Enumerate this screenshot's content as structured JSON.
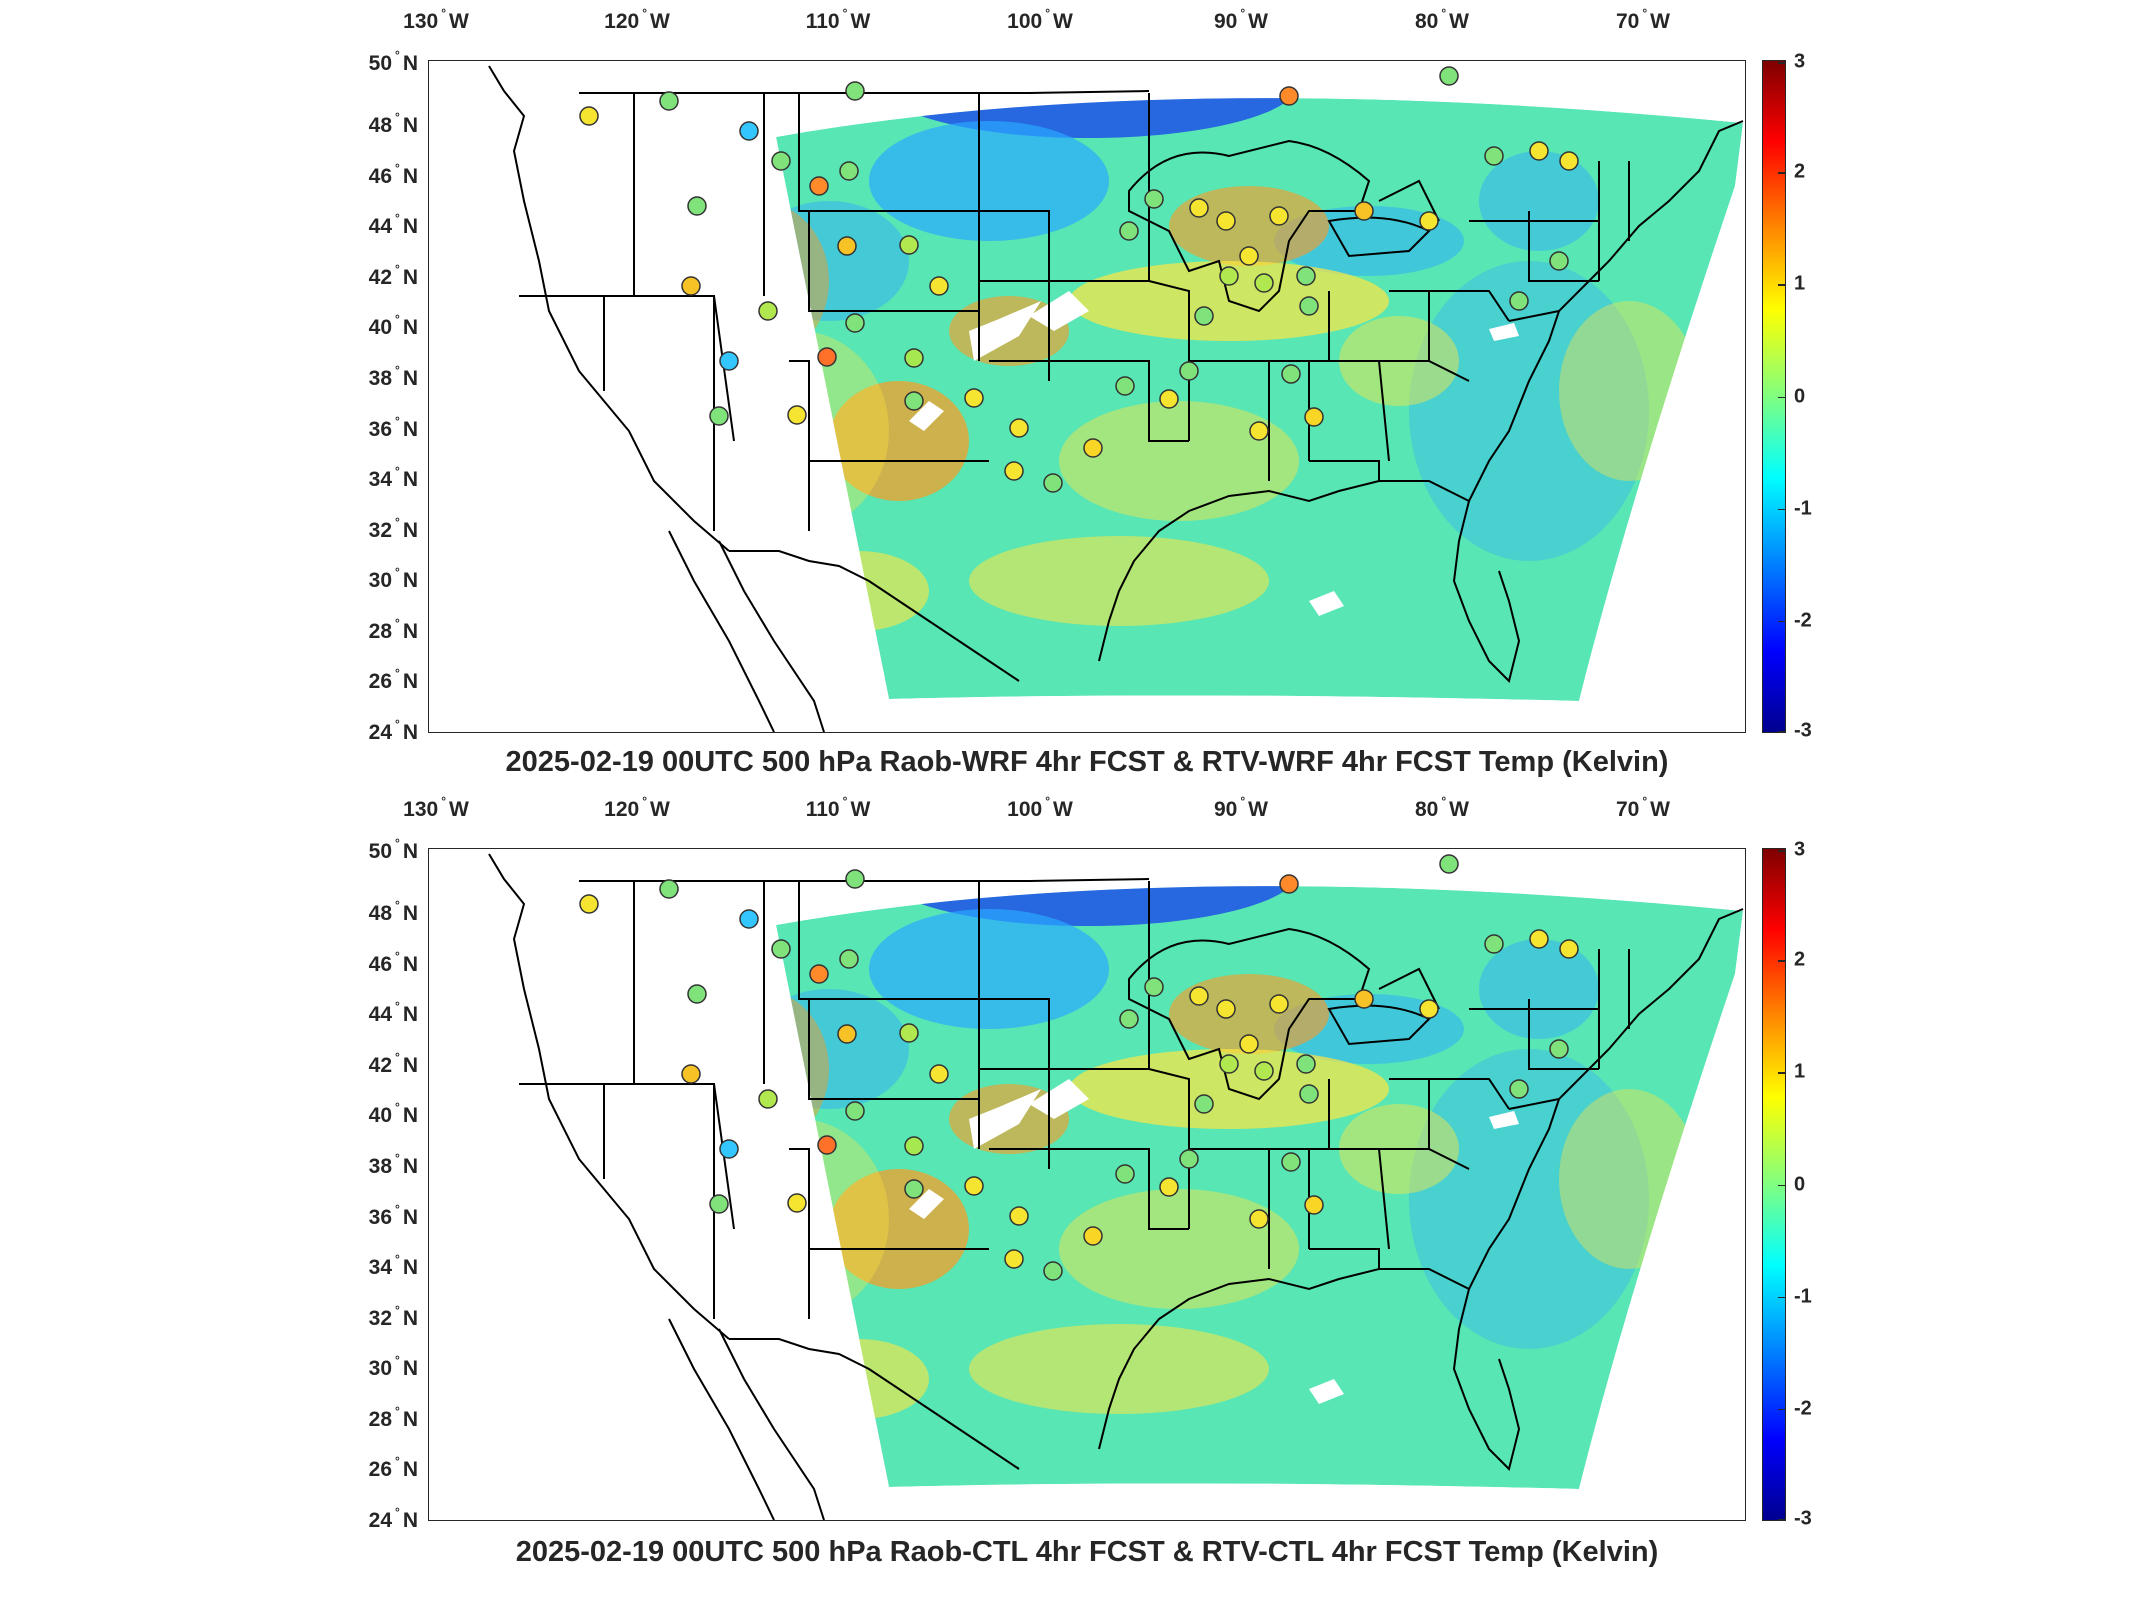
{
  "panels": [
    {
      "title": "2025-02-19 00UTC 500 hPa Raob-WRF 4hr FCST & RTV-WRF 4hr FCST Temp (Kelvin)"
    },
    {
      "title": "2025-02-19 00UTC 500 hPa Raob-CTL 4hr FCST & RTV-CTL 4hr FCST Temp (Kelvin)"
    }
  ],
  "axes": {
    "longitude_labels": [
      {
        "value": "130",
        "hemi": "W"
      },
      {
        "value": "120",
        "hemi": "W"
      },
      {
        "value": "110",
        "hemi": "W"
      },
      {
        "value": "100",
        "hemi": "W"
      },
      {
        "value": "90",
        "hemi": "W"
      },
      {
        "value": "80",
        "hemi": "W"
      },
      {
        "value": "70",
        "hemi": "W"
      }
    ],
    "latitude_labels": [
      {
        "value": "50",
        "hemi": "N"
      },
      {
        "value": "48",
        "hemi": "N"
      },
      {
        "value": "46",
        "hemi": "N"
      },
      {
        "value": "44",
        "hemi": "N"
      },
      {
        "value": "42",
        "hemi": "N"
      },
      {
        "value": "40",
        "hemi": "N"
      },
      {
        "value": "38",
        "hemi": "N"
      },
      {
        "value": "36",
        "hemi": "N"
      },
      {
        "value": "34",
        "hemi": "N"
      },
      {
        "value": "32",
        "hemi": "N"
      },
      {
        "value": "30",
        "hemi": "N"
      },
      {
        "value": "28",
        "hemi": "N"
      },
      {
        "value": "26",
        "hemi": "N"
      },
      {
        "value": "24",
        "hemi": "N"
      }
    ]
  },
  "colorbar": {
    "colormap": "jet",
    "range": [
      -3,
      3
    ],
    "ticks": [
      "3",
      "2",
      "1",
      "0",
      "-1",
      "-2",
      "-3"
    ]
  },
  "map": {
    "field_colors": {
      "background_field": "#58e6b4",
      "warm": "#ffe640",
      "hot": "#ff9a20",
      "cold": "#2aa8ff",
      "very_cold": "#1e50e6",
      "missing": "#ffffff"
    },
    "boundary_color": "#000000"
  }
}
